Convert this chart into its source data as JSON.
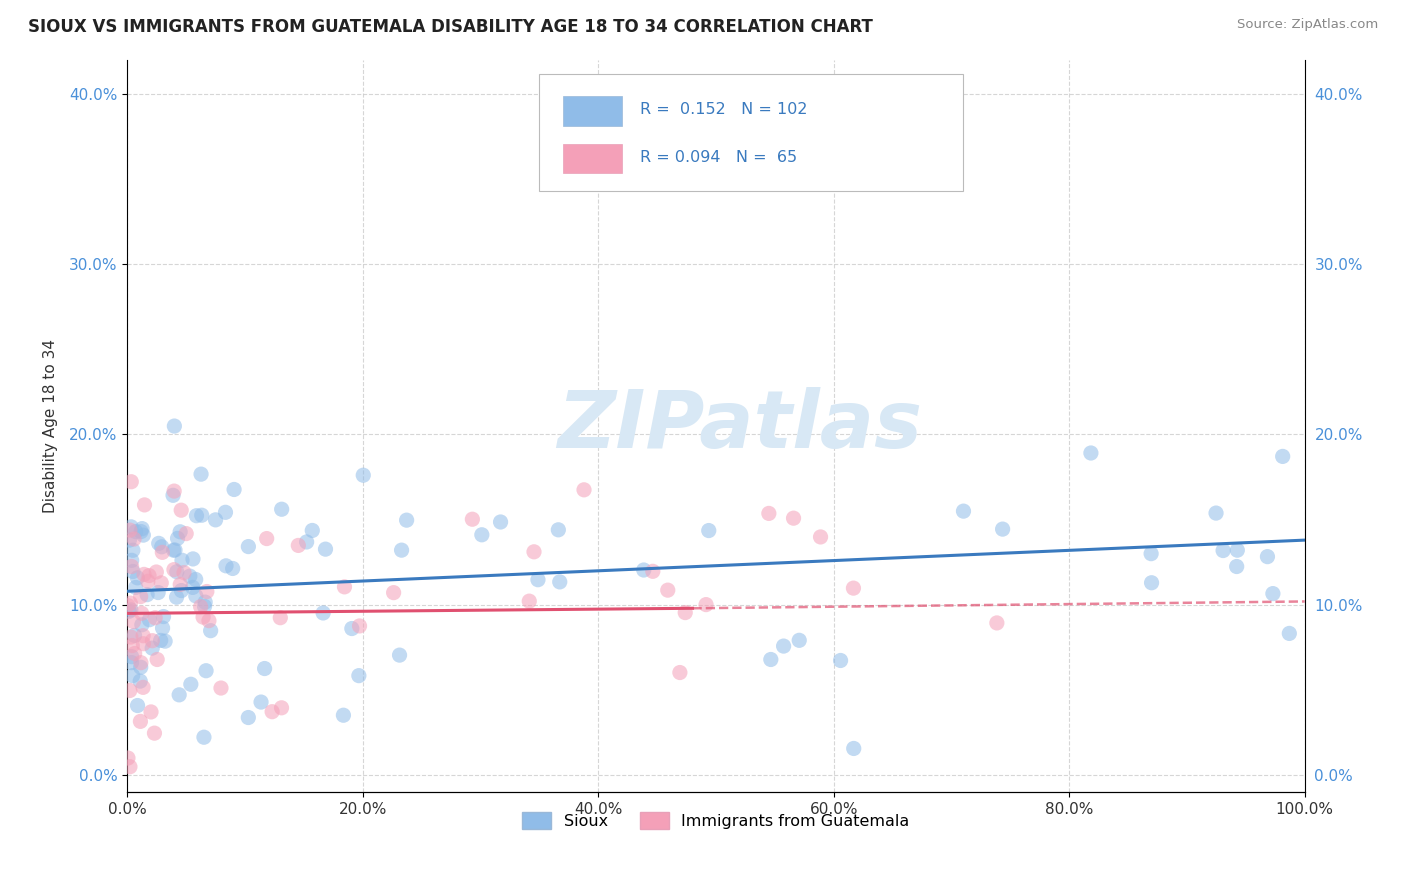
{
  "title": "SIOUX VS IMMIGRANTS FROM GUATEMALA DISABILITY AGE 18 TO 34 CORRELATION CHART",
  "source": "Source: ZipAtlas.com",
  "ylabel": "Disability Age 18 to 34",
  "xlim": [
    0,
    1.0
  ],
  "ylim": [
    -0.01,
    0.42
  ],
  "xticks": [
    0.0,
    0.2,
    0.4,
    0.6,
    0.8,
    1.0
  ],
  "yticks": [
    0.0,
    0.1,
    0.2,
    0.3,
    0.4
  ],
  "color_sioux": "#90bce8",
  "color_guatemala": "#f4a0b8",
  "trendline_sioux_color": "#3a7abf",
  "trendline_guatemala_color": "#e05070",
  "watermark_text": "ZIPatlas",
  "background_color": "#ffffff",
  "grid_color": "#cccccc",
  "legend_r1": "R =  0.152",
  "legend_n1": "N = 102",
  "legend_r2": "R = 0.094",
  "legend_n2": "N =  65"
}
